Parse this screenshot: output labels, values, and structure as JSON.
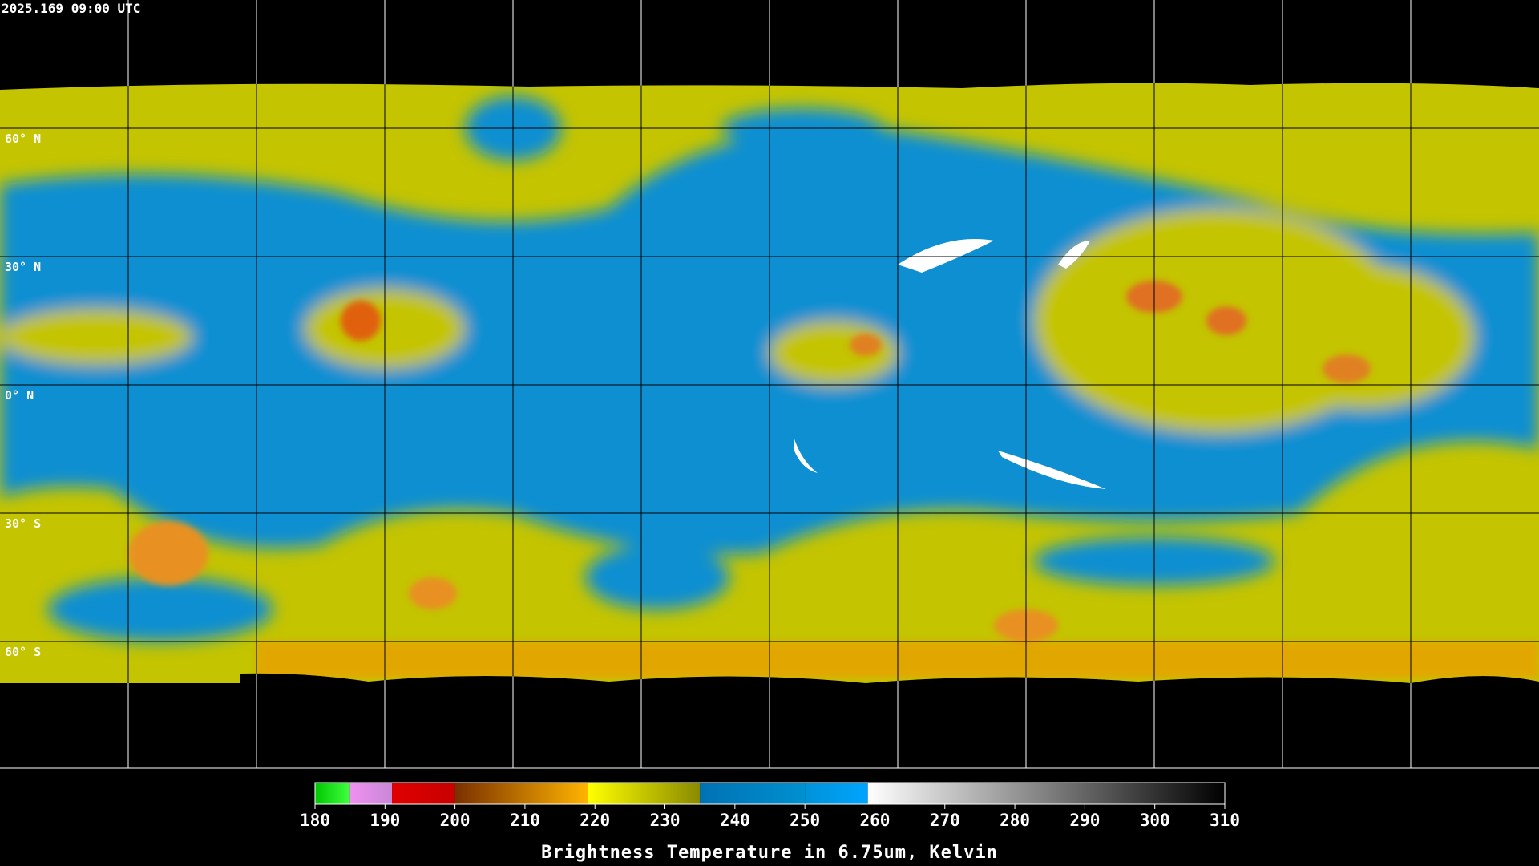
{
  "timestamp": "2025.169 09:00 UTC",
  "map": {
    "lat_labels": [
      "60° N",
      "30° N",
      "0° N",
      "30° S",
      "60° S"
    ]
  },
  "colorbar": {
    "title": "Brightness Temperature in 6.75um, Kelvin",
    "range": [
      180,
      310
    ],
    "ticks": [
      180,
      190,
      200,
      210,
      220,
      230,
      240,
      250,
      260,
      270,
      280,
      290,
      300,
      310
    ],
    "segments": [
      {
        "from": 180,
        "to": 185,
        "colors": [
          "#00c800",
          "#40ff40"
        ]
      },
      {
        "from": 185,
        "to": 191,
        "colors": [
          "#f090f0",
          "#c888d8"
        ]
      },
      {
        "from": 191,
        "to": 200,
        "colors": [
          "#e00000",
          "#c80000"
        ]
      },
      {
        "from": 200,
        "to": 219,
        "colors": [
          "#7a3000",
          "#ffb400"
        ]
      },
      {
        "from": 219,
        "to": 235,
        "colors": [
          "#ffff00",
          "#8a8a00"
        ]
      },
      {
        "from": 235,
        "to": 250,
        "colors": [
          "#0072b4",
          "#0090d0"
        ]
      },
      {
        "from": 250,
        "to": 259,
        "colors": [
          "#0092d8",
          "#00a4ff"
        ]
      },
      {
        "from": 259,
        "to": 310,
        "colors": [
          "#ffffff",
          "#000000"
        ]
      }
    ]
  }
}
